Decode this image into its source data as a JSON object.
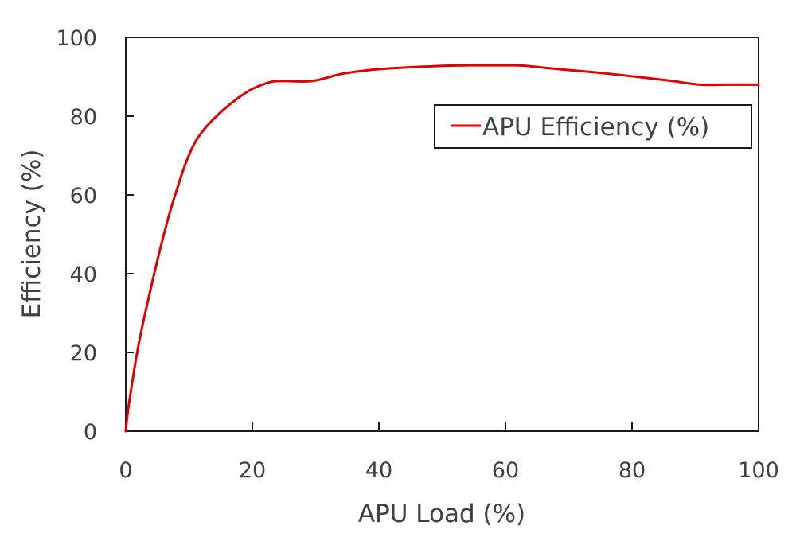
{
  "chart_data": {
    "type": "line",
    "title": "",
    "xlabel": "APU Load (%)",
    "ylabel": "Efficiency (%)",
    "xlim": [
      0,
      100
    ],
    "ylim": [
      0,
      100
    ],
    "xticks": [
      0,
      20,
      40,
      60,
      80,
      100
    ],
    "yticks": [
      0,
      20,
      40,
      60,
      80,
      100
    ],
    "grid": false,
    "legend_position": "upper right",
    "series": [
      {
        "name": "APU Efficiency (%)",
        "color": "#e00000",
        "x": [
          0,
          0.5,
          2.1,
          4.4,
          6.5,
          8,
          9.7,
          11.6,
          15,
          19,
          21.6,
          23.3,
          25,
          28.5,
          30.4,
          33,
          35,
          40.5,
          49,
          55,
          60,
          63,
          68,
          75,
          80.7,
          86,
          90.8,
          95,
          100
        ],
        "y": [
          0,
          7,
          22.6,
          39.4,
          52.9,
          61,
          69,
          75,
          81,
          86,
          88,
          88.8,
          88.9,
          88.8,
          89.2,
          90.3,
          91,
          92,
          92.7,
          92.9,
          92.9,
          92.8,
          92,
          91,
          90,
          89,
          88,
          88,
          88
        ]
      }
    ]
  },
  "axes": {
    "x_tick_labels": [
      "0",
      "20",
      "40",
      "60",
      "80",
      "100"
    ],
    "y_tick_labels": [
      "0",
      "20",
      "40",
      "60",
      "80",
      "100"
    ],
    "x_title": "APU Load (%)",
    "y_title": "Efficiency (%)"
  },
  "legend": {
    "label": "APU Efficiency (%)",
    "line_color": "#e00000"
  }
}
